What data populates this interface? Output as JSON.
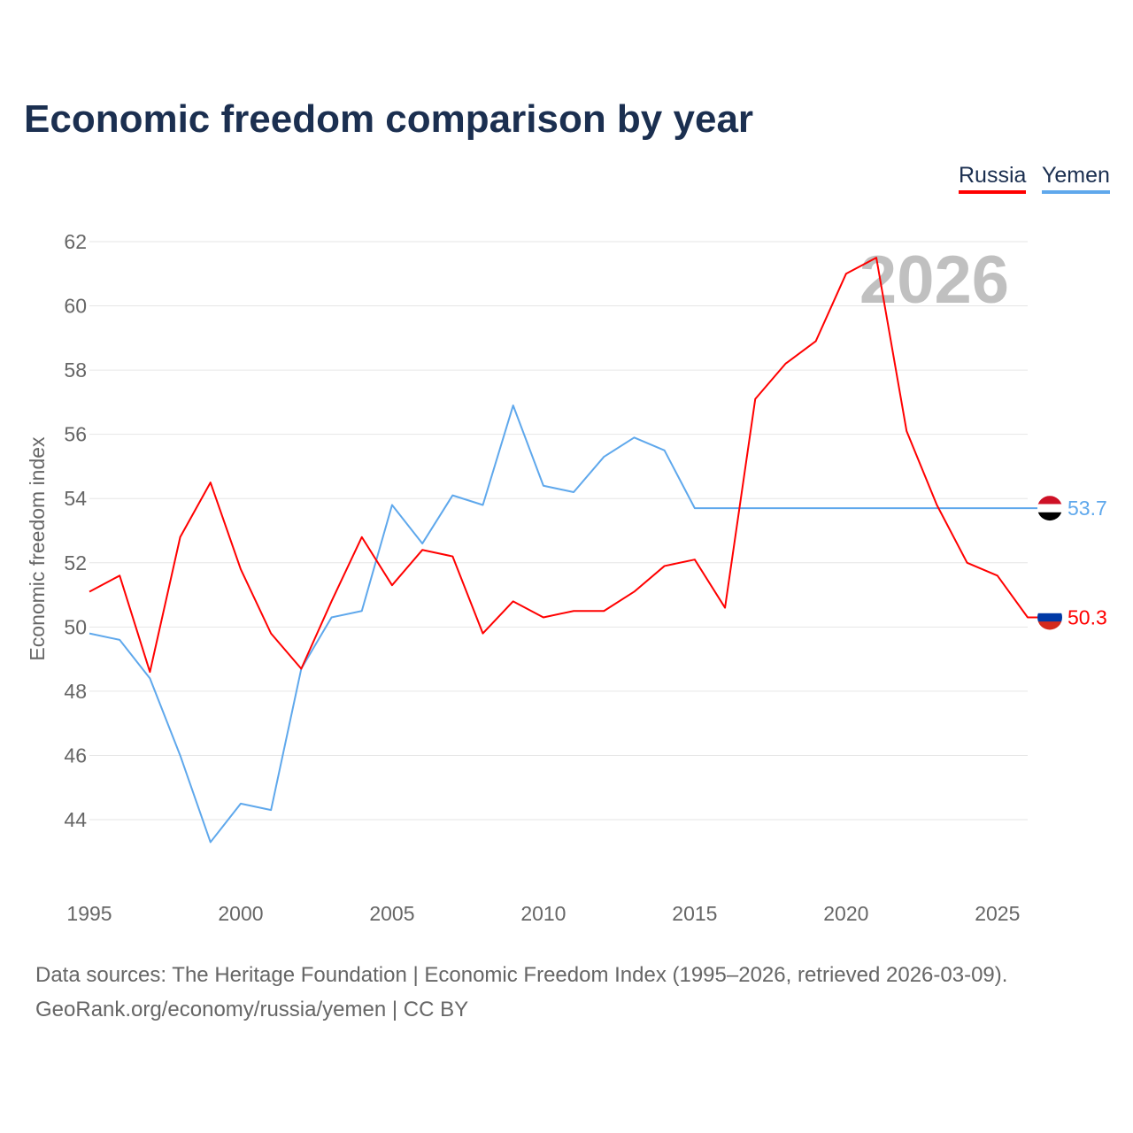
{
  "title": "Economic freedom comparison by year",
  "footer": {
    "sources": "Data sources: The Heritage Foundation | Economic Freedom Index (1995–2026, retrieved 2026-03-09).",
    "link": "GeoRank.org/economy/russia/yemen | CC BY"
  },
  "chart_data": {
    "type": "line",
    "title": "Economic freedom comparison by year",
    "ylabel": "Economic freedom index",
    "xlabel": "",
    "xlim": [
      1995,
      2026
    ],
    "ylim": [
      42,
      62
    ],
    "yticks": [
      44,
      46,
      48,
      50,
      52,
      54,
      56,
      58,
      60,
      62
    ],
    "xticks": [
      1995,
      2000,
      2005,
      2010,
      2015,
      2020,
      2025
    ],
    "grid": true,
    "legend_position": "top-right",
    "year_watermark": "2026",
    "x": [
      1995,
      1996,
      1997,
      1998,
      1999,
      2000,
      2001,
      2002,
      2003,
      2004,
      2005,
      2006,
      2007,
      2008,
      2009,
      2010,
      2011,
      2012,
      2013,
      2014,
      2015,
      2016,
      2017,
      2018,
      2019,
      2020,
      2021,
      2022,
      2023,
      2024,
      2025,
      2026
    ],
    "series": [
      {
        "name": "Russia",
        "color": "#ff0000",
        "end_label": "50.3",
        "flag": "russia",
        "values": [
          51.1,
          51.6,
          48.6,
          52.8,
          54.5,
          51.8,
          49.8,
          48.7,
          50.8,
          52.8,
          51.3,
          52.4,
          52.2,
          49.8,
          50.8,
          50.3,
          50.5,
          50.5,
          51.1,
          51.9,
          52.1,
          50.6,
          57.1,
          58.2,
          58.9,
          61.0,
          61.5,
          56.1,
          53.8,
          52.0,
          51.6,
          50.3
        ]
      },
      {
        "name": "Yemen",
        "color": "#5fa8ec",
        "end_label": "53.7",
        "flag": "yemen",
        "values": [
          49.8,
          49.6,
          48.4,
          46.0,
          43.3,
          44.5,
          44.3,
          48.7,
          50.3,
          50.5,
          53.8,
          52.6,
          54.1,
          53.8,
          56.9,
          54.4,
          54.2,
          55.3,
          55.9,
          55.5,
          53.7,
          53.7,
          53.7,
          53.7,
          53.7,
          53.7,
          53.7,
          53.7,
          53.7,
          53.7,
          53.7,
          53.7
        ]
      }
    ]
  }
}
